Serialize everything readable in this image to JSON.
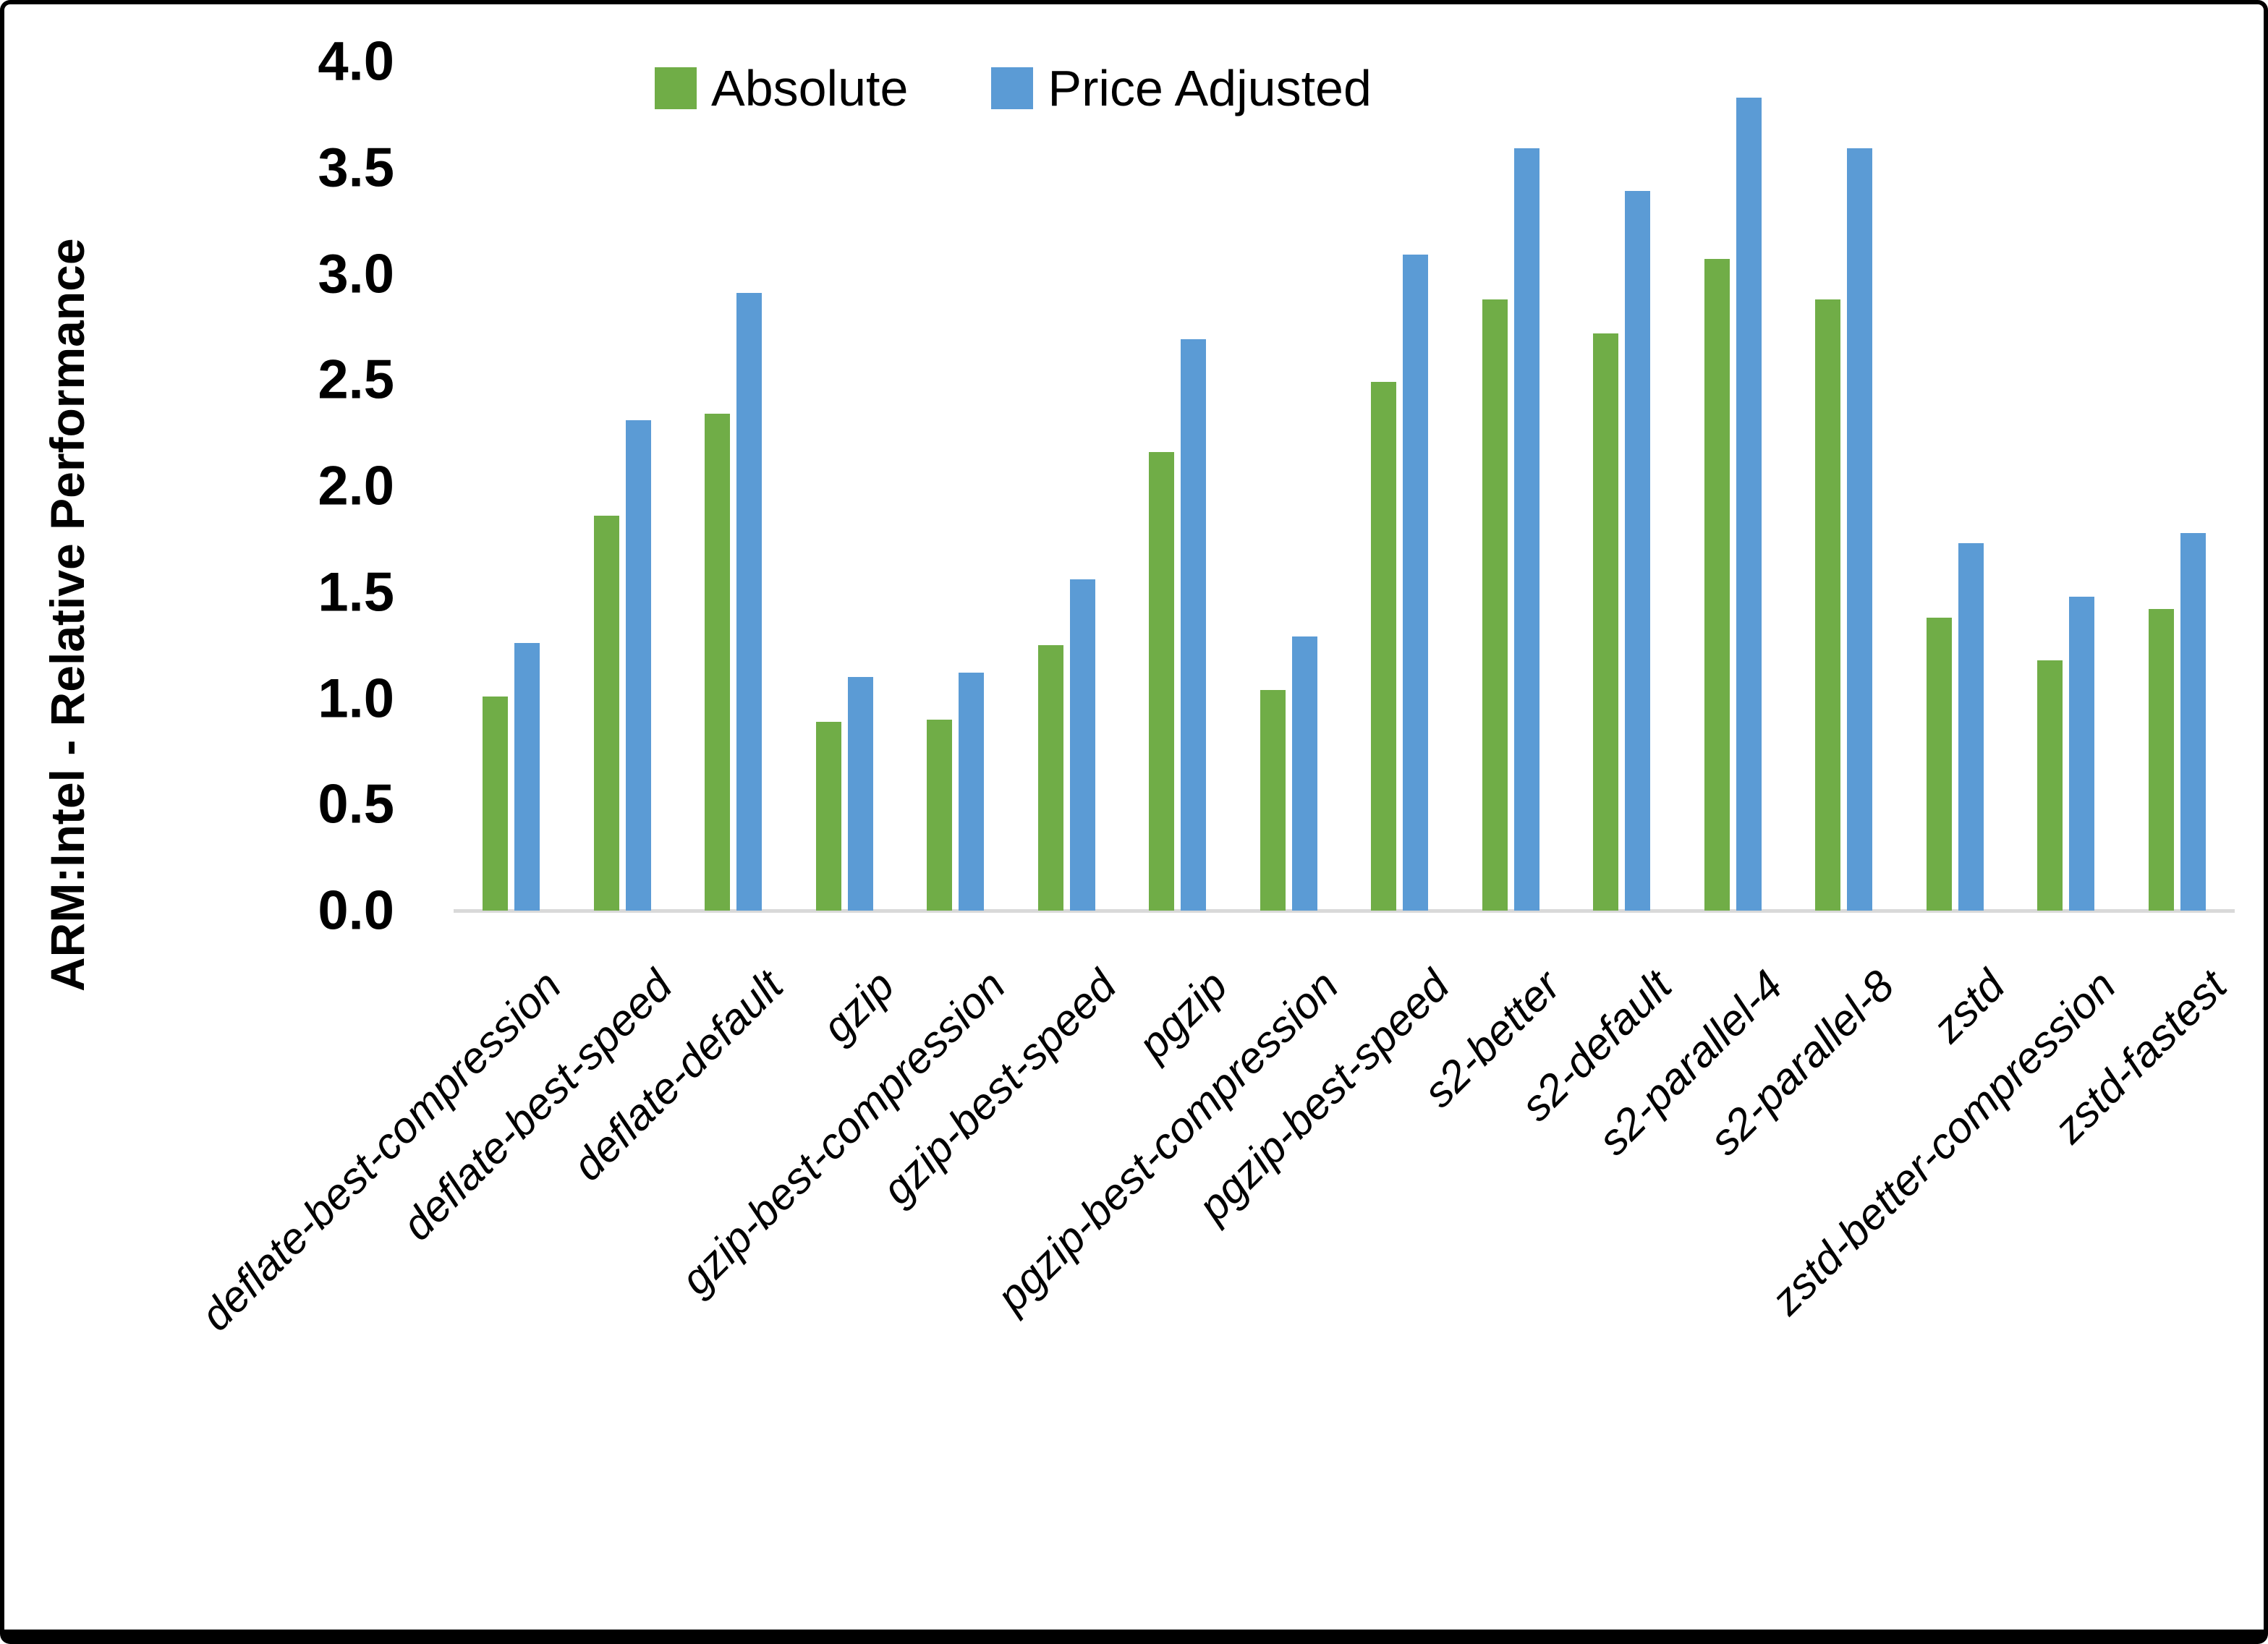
{
  "figure": {
    "background": "#ffffff",
    "frame_color": "#000000",
    "axis_line_color": "#d9d9d9",
    "text_color": "#000000"
  },
  "y_axis": {
    "title": "ARM:Intel - Relative Performance",
    "tick_labels": [
      "4.0",
      "3.5",
      "3.0",
      "2.5",
      "2.0",
      "1.5",
      "1.0",
      "0.5",
      "0.0"
    ],
    "min": 0.0,
    "max": 4.0,
    "step": 0.5
  },
  "legend": {
    "position": "top-center",
    "items": [
      {
        "label": "Absolute",
        "color": "#70AD47"
      },
      {
        "label": "Price Adjusted",
        "color": "#5B9BD5"
      }
    ]
  },
  "chart_data": {
    "type": "bar",
    "title": "",
    "xlabel": "",
    "ylabel": "ARM:Intel - Relative Performance",
    "ylim": [
      0.0,
      4.0
    ],
    "ytick_step": 0.5,
    "grid": false,
    "legend_position": "top-center",
    "categories": [
      "deflate-best-compression",
      "deflate-best-speed",
      "deflate-default",
      "gzip",
      "gzip-best-compression",
      "gzip-best-speed",
      "pgzip",
      "pgzip-best-compression",
      "pgzip-best-speed",
      "s2-better",
      "s2-default",
      "s2-parallel-4",
      "s2-parallel-8",
      "zstd",
      "zstd-better-compression",
      "zstd-fastest"
    ],
    "series": [
      {
        "name": "Absolute",
        "color": "#70AD47",
        "values": [
          1.01,
          1.86,
          2.34,
          0.89,
          0.9,
          1.25,
          2.16,
          1.04,
          2.49,
          2.88,
          2.72,
          3.07,
          2.88,
          1.38,
          1.18,
          1.42
        ]
      },
      {
        "name": "Price Adjusted",
        "color": "#5B9BD5",
        "values": [
          1.26,
          2.31,
          2.91,
          1.1,
          1.12,
          1.56,
          2.69,
          1.29,
          3.09,
          3.59,
          3.39,
          3.83,
          3.59,
          1.73,
          1.48,
          1.78
        ]
      }
    ]
  }
}
